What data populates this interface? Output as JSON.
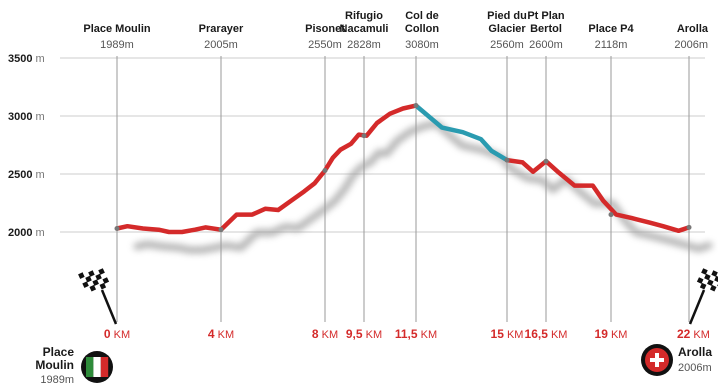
{
  "chart_data": {
    "type": "line",
    "title": "",
    "xlabel": "",
    "ylabel": "",
    "x_unit": "KM",
    "y_unit": "m",
    "ylim": [
      1500,
      3500
    ],
    "xlim": [
      0,
      22
    ],
    "yticks": [
      2000,
      2500,
      3000,
      3500
    ],
    "colors": {
      "default": "#d42a2a",
      "highlight": "#2a9bb0",
      "shadow": "#9a9a9a"
    },
    "waypoints": [
      {
        "name": "Place Moulin",
        "alt_label": "1989m",
        "km": 0
      },
      {
        "name": "Prarayer",
        "alt_label": "2005m",
        "km": 4
      },
      {
        "name": "Pisonet",
        "alt_label": "2550m",
        "km": 8
      },
      {
        "name": "Rifugio Nacamuli",
        "alt_label": "2828m",
        "km": 9.5
      },
      {
        "name": "Col de Collon",
        "alt_label": "3080m",
        "km": 11.5
      },
      {
        "name": "Pied du Glacier",
        "alt_label": "2560m",
        "km": 15
      },
      {
        "name": "Pt Plan Bertol",
        "alt_label": "2600m",
        "km": 16.5
      },
      {
        "name": "Place P4",
        "alt_label": "2118m",
        "km": 19
      },
      {
        "name": "Arolla",
        "alt_label": "2006m",
        "km": 22
      }
    ],
    "km_ticks": [
      {
        "num": "0",
        "unit": "KM",
        "km": 0
      },
      {
        "num": "4",
        "unit": "KM",
        "km": 4
      },
      {
        "num": "8",
        "unit": "KM",
        "km": 8
      },
      {
        "num": "9,5",
        "unit": "KM",
        "km": 9.5
      },
      {
        "num": "11,5",
        "unit": "KM",
        "km": 11.5
      },
      {
        "num": "15",
        "unit": "KM",
        "km": 15
      },
      {
        "num": "16,5",
        "unit": "KM",
        "km": 16.5
      },
      {
        "num": "19",
        "unit": "KM",
        "km": 19
      },
      {
        "num": "22",
        "unit": "KM",
        "km": 22
      }
    ],
    "series": [
      {
        "segment": "ascent",
        "color_key": "default",
        "points": [
          [
            0,
            2030
          ],
          [
            0.4,
            2050
          ],
          [
            1.0,
            2030
          ],
          [
            1.6,
            2020
          ],
          [
            2.0,
            2000
          ],
          [
            2.5,
            2000
          ],
          [
            3.0,
            2020
          ],
          [
            3.4,
            2040
          ],
          [
            4.0,
            2020
          ],
          [
            4.6,
            2150
          ],
          [
            5.2,
            2150
          ],
          [
            5.7,
            2200
          ],
          [
            6.2,
            2190
          ],
          [
            6.7,
            2270
          ],
          [
            7.2,
            2350
          ],
          [
            7.6,
            2420
          ],
          [
            8.0,
            2530
          ],
          [
            8.3,
            2640
          ],
          [
            8.6,
            2710
          ],
          [
            9.0,
            2760
          ],
          [
            9.3,
            2840
          ],
          [
            9.6,
            2830
          ],
          [
            10.0,
            2940
          ],
          [
            10.5,
            3020
          ],
          [
            11.0,
            3065
          ],
          [
            11.5,
            3090
          ]
        ]
      },
      {
        "segment": "glacier",
        "color_key": "highlight",
        "points": [
          [
            11.5,
            3090
          ],
          [
            12.5,
            2900
          ],
          [
            13.3,
            2860
          ],
          [
            14.0,
            2800
          ],
          [
            14.4,
            2700
          ],
          [
            15.0,
            2620
          ]
        ]
      },
      {
        "segment": "descent",
        "color_key": "default",
        "points": [
          [
            15.0,
            2620
          ],
          [
            15.6,
            2600
          ],
          [
            16.0,
            2520
          ],
          [
            16.5,
            2610
          ],
          [
            17.0,
            2510
          ],
          [
            17.6,
            2400
          ],
          [
            18.3,
            2400
          ],
          [
            18.7,
            2270
          ],
          [
            19.2,
            2150
          ],
          [
            19.8,
            2120
          ],
          [
            20.5,
            2080
          ],
          [
            21.0,
            2050
          ],
          [
            21.6,
            2010
          ],
          [
            22.0,
            2040
          ]
        ]
      }
    ],
    "start": {
      "name": "Place Moulin",
      "alt_label": "1989m"
    },
    "end": {
      "name": "Arolla",
      "alt_label": "2006m"
    }
  }
}
